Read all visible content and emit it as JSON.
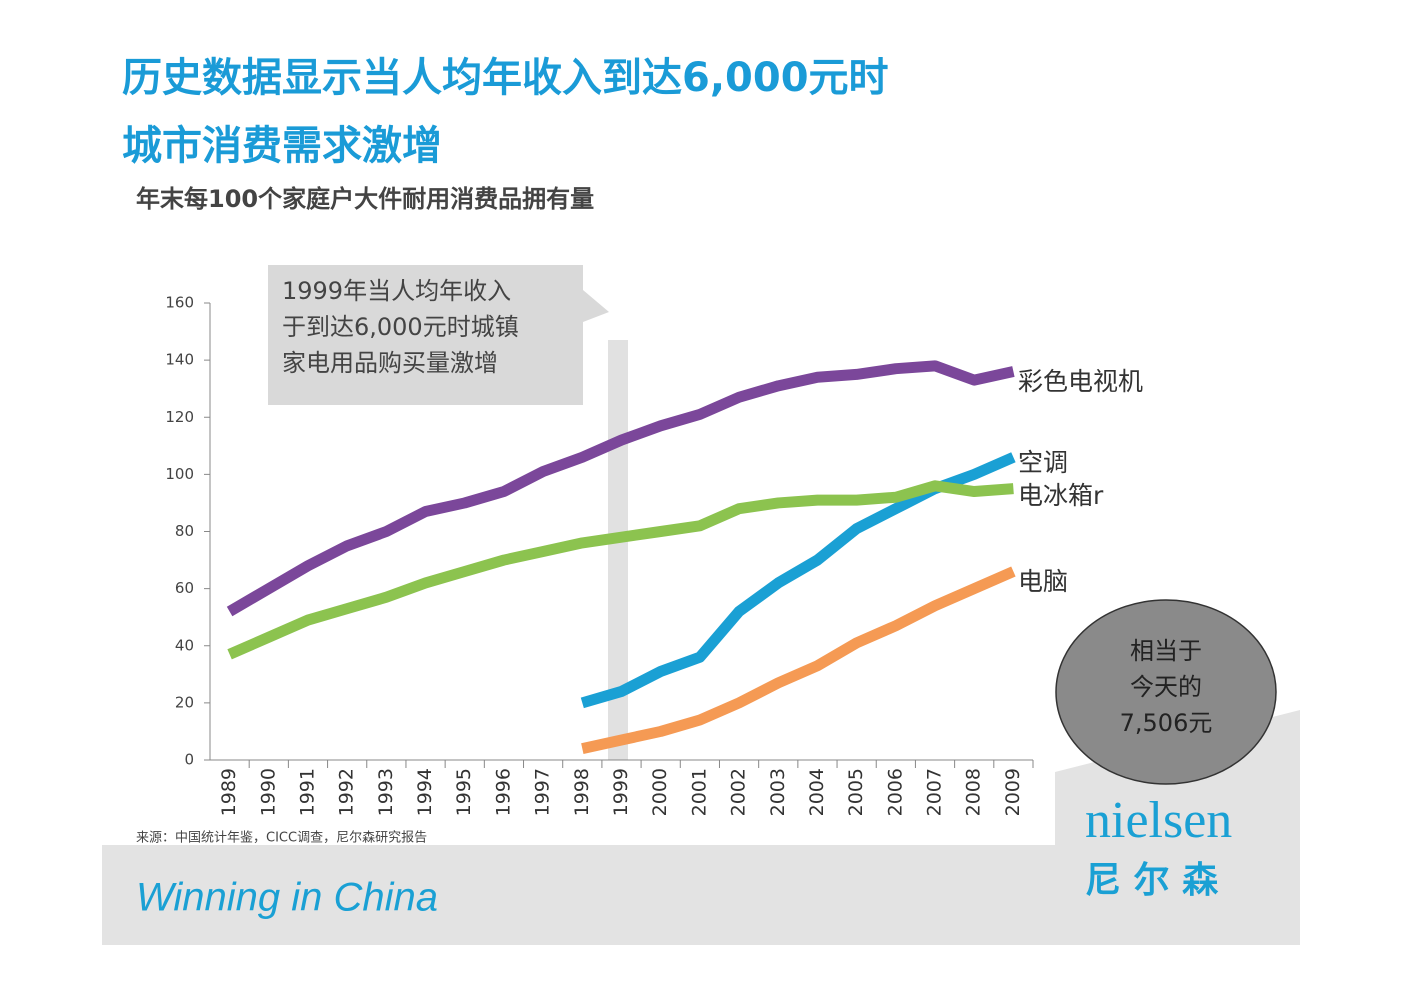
{
  "chart_data": {
    "type": "line",
    "title_lines": [
      "历史数据显示当人均年收入到达6,000元时",
      "城市消费需求激增"
    ],
    "subtitle": "年末每100个家庭户大件耐用消费品拥有量",
    "annotation_lines": [
      "1999年当人均年收入",
      "于到达6,000元时城镇",
      "家电用品购买量激增"
    ],
    "bubble_lines": [
      "相当于",
      "今天的",
      "7,506元"
    ],
    "source": "来源：中国统计年鉴，CICC调查，尼尔森研究报告",
    "categories": [
      "1989",
      "1990",
      "1991",
      "1992",
      "1993",
      "1994",
      "1995",
      "1996",
      "1997",
      "1998",
      "1999",
      "2000",
      "2001",
      "2002",
      "2003",
      "2004",
      "2005",
      "2006",
      "2007",
      "2008",
      "2009"
    ],
    "ylim": [
      0,
      160
    ],
    "yticks": [
      0,
      20,
      40,
      60,
      80,
      100,
      120,
      140,
      160
    ],
    "series": [
      {
        "name": "彩色电视机",
        "color": "#7b479a",
        "values": [
          52,
          60,
          68,
          75,
          80,
          87,
          90,
          94,
          101,
          106,
          112,
          117,
          121,
          127,
          131,
          134,
          135,
          137,
          138,
          133,
          136
        ]
      },
      {
        "name": "空调",
        "color": "#1aa0d4",
        "values": [
          null,
          null,
          null,
          null,
          null,
          null,
          null,
          null,
          null,
          20,
          24,
          31,
          36,
          52,
          62,
          70,
          81,
          88,
          95,
          100,
          106
        ]
      },
      {
        "name": "电冰箱r",
        "color": "#8cc34f",
        "values": [
          37,
          43,
          49,
          53,
          57,
          62,
          66,
          70,
          73,
          76,
          78,
          80,
          82,
          88,
          90,
          91,
          91,
          92,
          96,
          94,
          95
        ]
      },
      {
        "name": "电脑",
        "color": "#f59a54",
        "values": [
          null,
          null,
          null,
          null,
          null,
          null,
          null,
          null,
          null,
          4,
          7,
          10,
          14,
          20,
          27,
          33,
          41,
          47,
          54,
          60,
          66
        ]
      }
    ]
  },
  "branding": {
    "slogan": "Winning in China",
    "logo": "nielsen",
    "logo_cn": "尼 尔 森"
  }
}
